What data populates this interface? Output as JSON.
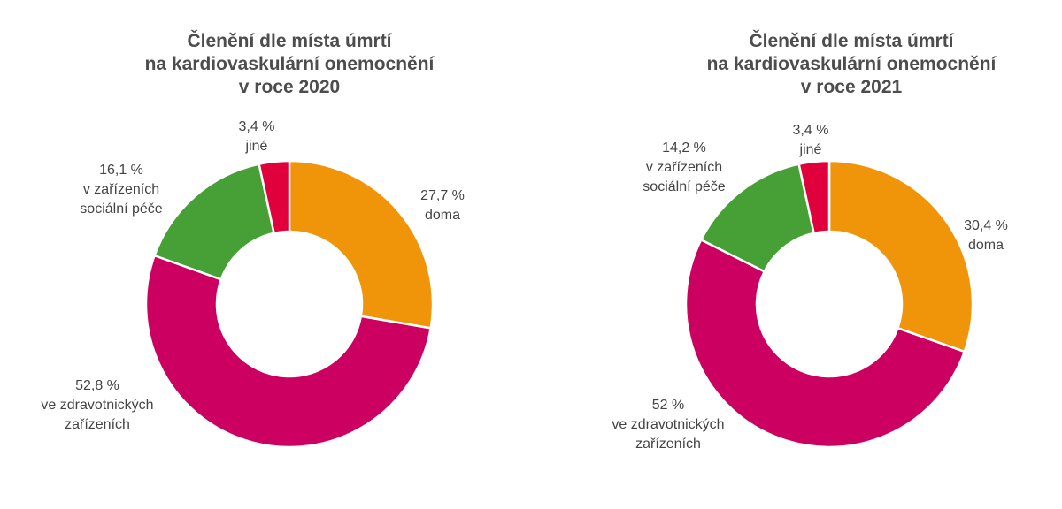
{
  "chart_data": [
    {
      "type": "pie",
      "title": [
        "Členění dle místa úmrtí",
        "na kardiovaskulární onemocnění",
        "v roce 2020"
      ],
      "categories": [
        "doma",
        "ve zdravotnických zařízeních",
        "v zařízeních sociální péče",
        "jiné"
      ],
      "values": [
        27.7,
        52.8,
        16.1,
        3.4
      ],
      "labels": [
        [
          "27,7 %",
          "doma"
        ],
        [
          "52,8 %",
          "ve zdravotnických",
          "zařízeních"
        ],
        [
          "16,1 %",
          "v zařízeních",
          "sociální péče"
        ],
        [
          "3,4 %",
          "jiné"
        ]
      ],
      "colors": [
        "#f0940a",
        "#cc0060",
        "#46a035",
        "#e0003c"
      ]
    },
    {
      "type": "pie",
      "title": [
        "Členění dle místa úmrtí",
        "na kardiovaskulární onemocnění",
        "v roce 2021"
      ],
      "categories": [
        "doma",
        "ve zdravotnických zařízeních",
        "v zařízeních sociální péče",
        "jiné"
      ],
      "values": [
        30.4,
        52,
        14.2,
        3.4
      ],
      "labels": [
        [
          "30,4 %",
          "doma"
        ],
        [
          "52 %",
          "ve zdravotnických",
          "zařízeních"
        ],
        [
          "14,2 %",
          "v zařízeních",
          "sociální péče"
        ],
        [
          "3,4 %",
          "jiné"
        ]
      ],
      "colors": [
        "#f0940a",
        "#cc0060",
        "#46a035",
        "#e0003c"
      ]
    }
  ]
}
